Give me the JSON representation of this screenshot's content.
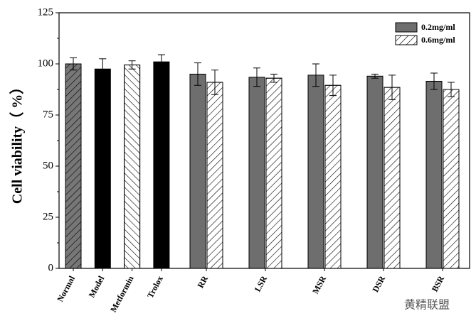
{
  "chart_data": {
    "type": "bar",
    "ylabel": "Cell viability（ %）",
    "categories": [
      "Normal",
      "Model",
      "Metformin",
      "Trolox",
      "RR",
      "LSR",
      "MSR",
      "DSR",
      "BSR"
    ],
    "single_fills": [
      "gray-hatch",
      "black",
      "white-hatch",
      "black"
    ],
    "series": [
      {
        "name": "0.2mg/ml",
        "color": "#6e6e6e",
        "values": [
          100,
          97.5,
          99.5,
          101,
          95,
          93.5,
          94.5,
          94,
          91.5
        ],
        "errors": [
          3,
          5,
          2,
          3.5,
          5.5,
          4.5,
          5.5,
          1,
          4
        ]
      },
      {
        "name": "0.6mg/ml",
        "color": "#ffffff",
        "values": [
          null,
          null,
          null,
          null,
          91,
          93,
          89.5,
          88.5,
          87.5
        ],
        "errors": [
          null,
          null,
          null,
          null,
          6,
          2,
          5,
          6,
          3.5
        ]
      }
    ],
    "ylim": [
      0,
      125
    ],
    "yticks": [
      0,
      25,
      50,
      75,
      100,
      125
    ],
    "grid": false,
    "legend": "upper right",
    "watermark": "黄精联盟"
  }
}
